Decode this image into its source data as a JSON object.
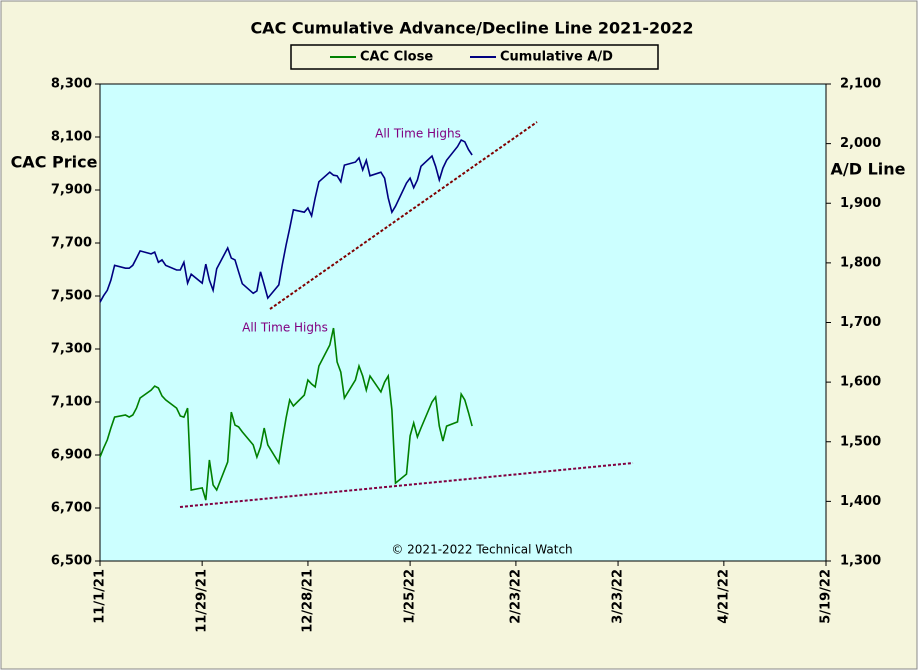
{
  "chart_data": {
    "type": "line",
    "title": "CAC Cumulative  Advance/Decline  Line  2021-2022",
    "y_label": "CAC Price",
    "y2_label": "A/D Line",
    "annotations": [
      "All Time Highs",
      "All Time Highs",
      "© 2021-2022  Technical  Watch"
    ],
    "x": [
      "11/1/21",
      "11/2/21",
      "11/3/21",
      "11/4/21",
      "11/5/21",
      "11/8/21",
      "11/9/21",
      "11/10/21",
      "11/11/21",
      "11/12/21",
      "11/15/21",
      "11/16/21",
      "11/17/21",
      "11/18/21",
      "11/19/21",
      "11/22/21",
      "11/23/21",
      "11/24/21",
      "11/25/21",
      "11/26/21",
      "11/29/21",
      "11/30/21",
      "12/1/21",
      "12/2/21",
      "12/3/21",
      "12/6/21",
      "12/7/21",
      "12/8/21",
      "12/9/21",
      "12/10/21",
      "12/13/21",
      "12/14/21",
      "12/15/21",
      "12/16/21",
      "12/17/21",
      "12/20/21",
      "12/21/21",
      "12/22/21",
      "12/23/21",
      "12/24/21",
      "12/27/21",
      "12/28/21",
      "12/29/21",
      "12/30/21",
      "12/31/21",
      "1/3/22",
      "1/4/22",
      "1/5/22",
      "1/6/22",
      "1/7/22",
      "1/10/22",
      "1/11/22",
      "1/12/22",
      "1/13/22",
      "1/14/22",
      "1/17/22",
      "1/18/22",
      "1/19/22",
      "1/20/22",
      "1/21/22",
      "1/24/22",
      "1/25/22",
      "1/26/22",
      "1/27/22",
      "1/28/22",
      "1/31/22",
      "2/1/22",
      "2/2/22",
      "2/3/22",
      "2/4/22",
      "2/7/22",
      "2/8/22",
      "2/9/22",
      "2/10/22",
      "2/11/22"
    ],
    "series": [
      {
        "name": "CAC Close",
        "color": "#008000",
        "axis": "y",
        "values": [
          6892,
          6926,
          6957,
          7002,
          7043,
          7051,
          7043,
          7051,
          7077,
          7115,
          7145,
          7160,
          7153,
          7123,
          7108,
          7077,
          7047,
          7043,
          7077,
          6768,
          6776,
          6730,
          6881,
          6787,
          6768,
          6874,
          7062,
          7013,
          7006,
          6987,
          6938,
          6892,
          6930,
          7002,
          6938,
          6870,
          6957,
          7040,
          7108,
          7085,
          7126,
          7183,
          7168,
          7157,
          7236,
          7315,
          7379,
          7251,
          7213,
          7115,
          7183,
          7236,
          7198,
          7145,
          7198,
          7138,
          7175,
          7198,
          7070,
          6794,
          6828,
          6972,
          7021,
          6968,
          7002,
          7100,
          7119,
          7009,
          6953,
          7009,
          7025,
          7130,
          7108,
          7060,
          7009
        ]
      },
      {
        "name": "Cumulative A/D",
        "color": "#000080",
        "axis": "y2",
        "values": [
          1734,
          1745,
          1754,
          1771,
          1796,
          1791,
          1791,
          1796,
          1808,
          1820,
          1815,
          1818,
          1801,
          1805,
          1796,
          1788,
          1788,
          1801,
          1766,
          1781,
          1766,
          1798,
          1771,
          1754,
          1790,
          1825,
          1808,
          1805,
          1785,
          1765,
          1749,
          1753,
          1785,
          1763,
          1741,
          1763,
          1798,
          1830,
          1858,
          1889,
          1885,
          1892,
          1879,
          1909,
          1936,
          1952,
          1947,
          1946,
          1936,
          1964,
          1969,
          1976,
          1956,
          1972,
          1946,
          1952,
          1942,
          1909,
          1885,
          1895,
          1934,
          1942,
          1926,
          1939,
          1962,
          1979,
          1962,
          1939,
          1959,
          1972,
          1995,
          2006,
          2003,
          1990,
          1981
        ]
      }
    ],
    "xlim": [
      "11/1/21",
      "5/19/22"
    ],
    "xticks": [
      "11/1/21",
      "11/29/21",
      "12/28/21",
      "1/25/22",
      "2/23/22",
      "3/23/22",
      "4/21/22",
      "5/19/22"
    ],
    "ylim": [
      6500,
      8300
    ],
    "yticks": [
      {
        "value": 6500,
        "label": "6,500"
      },
      {
        "value": 6700,
        "label": "6,700"
      },
      {
        "value": 6900,
        "label": "6,900"
      },
      {
        "value": 7100,
        "label": "7,100"
      },
      {
        "value": 7300,
        "label": "7,300"
      },
      {
        "value": 7500,
        "label": "7,500"
      },
      {
        "value": 7700,
        "label": "7,700"
      },
      {
        "value": 7900,
        "label": "7,900"
      },
      {
        "value": 8100,
        "label": "8,100"
      },
      {
        "value": 8300,
        "label": "8,300"
      }
    ],
    "y2lim": [
      1300,
      2100
    ],
    "y2ticks": [
      {
        "value": 1300,
        "label": "1,300"
      },
      {
        "value": 1400,
        "label": "1,400"
      },
      {
        "value": 1500,
        "label": "1,500"
      },
      {
        "value": 1600,
        "label": "1,600"
      },
      {
        "value": 1700,
        "label": "1,700"
      },
      {
        "value": 1800,
        "label": "1,800"
      },
      {
        "value": 1900,
        "label": "1,900"
      },
      {
        "value": 2000,
        "label": "2,000"
      },
      {
        "value": 2100,
        "label": "2,100"
      }
    ],
    "legend": "top",
    "plot_background": "#ccffff"
  }
}
